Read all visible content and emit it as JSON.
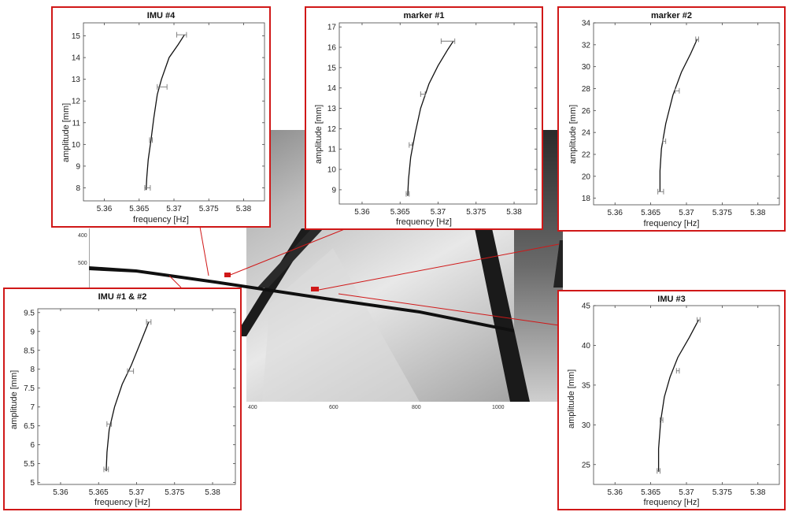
{
  "photo": {
    "y_ticks": [
      "400",
      "500"
    ],
    "x_ticks": [
      "400",
      "600",
      "800",
      "1000"
    ]
  },
  "accent_color": "#d01818",
  "chart_data": [
    {
      "type": "line",
      "title": "IMU #4",
      "xlabel": "frequency [Hz]",
      "ylabel": "amplitude [mm]",
      "xlim": [
        5.357,
        5.383
      ],
      "ylim": [
        7.4,
        15.6
      ],
      "xticks": [
        5.36,
        5.365,
        5.37,
        5.375,
        5.38
      ],
      "xtick_labels": [
        "5.36",
        "5.365",
        "5.37",
        "5.375",
        "5.38"
      ],
      "yticks": [
        8,
        9,
        10,
        11,
        12,
        13,
        14,
        15
      ],
      "ytick_labels": [
        "8",
        "9",
        "10",
        "11",
        "12",
        "13",
        "14",
        "15"
      ],
      "x": [
        5.366,
        5.3661,
        5.3663,
        5.3667,
        5.3671,
        5.3676,
        5.3682,
        5.3693,
        5.3706,
        5.3715
      ],
      "y": [
        7.9,
        8.5,
        9.3,
        10.2,
        11.2,
        12.3,
        13.0,
        14.0,
        14.6,
        15.05
      ],
      "points": [
        {
          "x": 5.3662,
          "y": 8.0,
          "xerr": 0.0004
        },
        {
          "x": 5.3667,
          "y": 10.2,
          "xerr": 0.0002
        },
        {
          "x": 5.3683,
          "y": 12.65,
          "xerr": 0.0007
        },
        {
          "x": 5.3711,
          "y": 15.05,
          "xerr": 0.0007
        }
      ],
      "error_bars": "horizontal",
      "grid": false
    },
    {
      "type": "line",
      "title": "marker #1",
      "xlabel": "frequency [Hz]",
      "ylabel": "amplitude [mm]",
      "xlim": [
        5.357,
        5.383
      ],
      "ylim": [
        8.3,
        17.2
      ],
      "xticks": [
        5.36,
        5.365,
        5.37,
        5.375,
        5.38
      ],
      "xtick_labels": [
        "5.36",
        "5.365",
        "5.37",
        "5.375",
        "5.38"
      ],
      "yticks": [
        9,
        10,
        11,
        12,
        13,
        14,
        15,
        16,
        17
      ],
      "ytick_labels": [
        "9",
        "10",
        "11",
        "12",
        "13",
        "14",
        "15",
        "16",
        "17"
      ],
      "x": [
        5.366,
        5.3661,
        5.3664,
        5.367,
        5.3677,
        5.3688,
        5.37,
        5.3713,
        5.372
      ],
      "y": [
        8.7,
        9.5,
        10.6,
        11.8,
        13.0,
        14.2,
        15.1,
        15.9,
        16.3
      ],
      "points": [
        {
          "x": 5.366,
          "y": 8.8,
          "xerr": 0.0002
        },
        {
          "x": 5.3664,
          "y": 11.2,
          "xerr": 0.0002
        },
        {
          "x": 5.368,
          "y": 13.7,
          "xerr": 0.0003
        },
        {
          "x": 5.3713,
          "y": 16.3,
          "xerr": 0.0009
        }
      ],
      "error_bars": "horizontal",
      "grid": false
    },
    {
      "type": "line",
      "title": "marker #2",
      "xlabel": "frequency [Hz]",
      "ylabel": "amplitude [mm]",
      "xlim": [
        5.357,
        5.383
      ],
      "ylim": [
        17.4,
        34.0
      ],
      "xticks": [
        5.36,
        5.365,
        5.37,
        5.375,
        5.38
      ],
      "xtick_labels": [
        "5.36",
        "5.365",
        "5.37",
        "5.375",
        "5.38"
      ],
      "yticks": [
        18,
        20,
        22,
        24,
        26,
        28,
        30,
        32,
        34
      ],
      "ytick_labels": [
        "18",
        "20",
        "22",
        "24",
        "26",
        "28",
        "30",
        "32",
        "34"
      ],
      "x": [
        5.3663,
        5.3663,
        5.3665,
        5.3671,
        5.3681,
        5.3693,
        5.3706,
        5.3715
      ],
      "y": [
        18.6,
        20.5,
        22.5,
        24.8,
        27.4,
        29.5,
        31.2,
        32.5
      ],
      "points": [
        {
          "x": 5.3664,
          "y": 18.6,
          "xerr": 0.0004
        },
        {
          "x": 5.3669,
          "y": 23.2,
          "xerr": 0.0002
        },
        {
          "x": 5.3687,
          "y": 27.8,
          "xerr": 0.0003
        },
        {
          "x": 5.3715,
          "y": 32.5,
          "xerr": 0.0002
        }
      ],
      "error_bars": "horizontal",
      "grid": false
    },
    {
      "type": "line",
      "title": "IMU #1 & #2",
      "xlabel": "frequency [Hz]",
      "ylabel": "amplitude [mm]",
      "xlim": [
        5.357,
        5.383
      ],
      "ylim": [
        4.95,
        9.6
      ],
      "xticks": [
        5.36,
        5.365,
        5.37,
        5.375,
        5.38
      ],
      "xtick_labels": [
        "5.36",
        "5.365",
        "5.37",
        "5.375",
        "5.38"
      ],
      "yticks": [
        5,
        5.5,
        6,
        6.5,
        7,
        7.5,
        8,
        8.5,
        9,
        9.5
      ],
      "ytick_labels": [
        "5",
        "5.5",
        "6",
        "6.5",
        "7",
        "7.5",
        "8",
        "8.5",
        "9",
        "9.5"
      ],
      "x": [
        5.366,
        5.3661,
        5.3664,
        5.3671,
        5.3681,
        5.3693,
        5.3705,
        5.3716
      ],
      "y": [
        5.3,
        5.8,
        6.4,
        7.0,
        7.6,
        8.1,
        8.7,
        9.25
      ],
      "points": [
        {
          "x": 5.366,
          "y": 5.35,
          "xerr": 0.0003
        },
        {
          "x": 5.3664,
          "y": 6.55,
          "xerr": 0.0003
        },
        {
          "x": 5.3692,
          "y": 7.95,
          "xerr": 0.0004
        },
        {
          "x": 5.3716,
          "y": 9.25,
          "xerr": 0.0003
        }
      ],
      "error_bars": "horizontal",
      "grid": false
    },
    {
      "type": "line",
      "title": "IMU #3",
      "xlabel": "frequency [Hz]",
      "ylabel": "amplitude [mm]",
      "xlim": [
        5.357,
        5.383
      ],
      "ylim": [
        22.5,
        45.0
      ],
      "xticks": [
        5.36,
        5.365,
        5.37,
        5.375,
        5.38
      ],
      "xtick_labels": [
        "5.36",
        "5.365",
        "5.37",
        "5.375",
        "5.38"
      ],
      "yticks": [
        25,
        30,
        35,
        40,
        45
      ],
      "ytick_labels": [
        "25",
        "30",
        "35",
        "40",
        "45"
      ],
      "x": [
        5.3661,
        5.3661,
        5.3664,
        5.3669,
        5.3677,
        5.3688,
        5.3704,
        5.3717
      ],
      "y": [
        24.1,
        27.0,
        30.5,
        33.5,
        36.0,
        38.5,
        41.0,
        43.2
      ],
      "points": [
        {
          "x": 5.3661,
          "y": 24.2,
          "xerr": 0.0002
        },
        {
          "x": 5.3665,
          "y": 30.6,
          "xerr": 0.0002
        },
        {
          "x": 5.3688,
          "y": 36.8,
          "xerr": 0.0002
        },
        {
          "x": 5.3717,
          "y": 43.2,
          "xerr": 0.0002
        }
      ],
      "error_bars": "horizontal",
      "grid": false
    }
  ]
}
